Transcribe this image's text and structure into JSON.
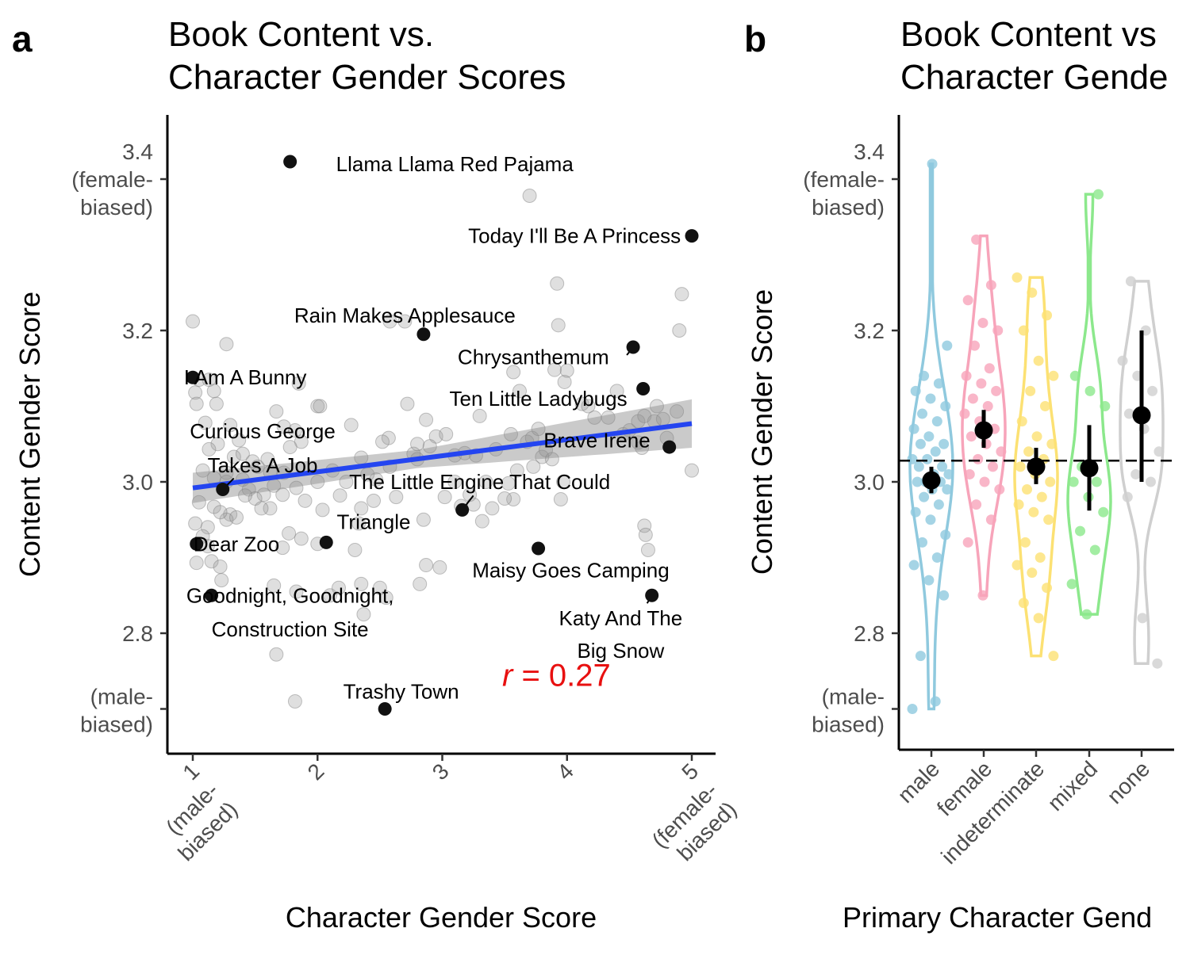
{
  "chart_data": [
    {
      "panel_label": "a",
      "type": "scatter",
      "title": "Book Content vs.\nCharacter Gender Scores",
      "xlabel": "Character Gender Score",
      "ylabel": "Content Gender Score",
      "xlim": [
        0.8,
        5.2
      ],
      "ylim": [
        2.64,
        3.48
      ],
      "grid": false,
      "x_ticks": [
        {
          "value": 1,
          "label": "1\n(male-\nbiased)"
        },
        {
          "value": 2,
          "label": "2"
        },
        {
          "value": 3,
          "label": "3"
        },
        {
          "value": 4,
          "label": "4"
        },
        {
          "value": 5,
          "label": "5\n(female-\nbiased)"
        }
      ],
      "y_ticks": [
        {
          "value": 3.4,
          "label": "3.4\n(female-\nbiased)"
        },
        {
          "value": 3.2,
          "label": "3.2"
        },
        {
          "value": 3.0,
          "label": "3.0"
        },
        {
          "value": 2.8,
          "label": "2.8"
        },
        {
          "value": 2.7,
          "label": "(male-\nbiased)"
        }
      ],
      "fit_line": {
        "x": [
          1,
          5
        ],
        "y": [
          2.992,
          3.077
        ],
        "ci_halfwidth_ends": [
          0.02,
          0.032
        ],
        "ci_halfwidth_mid": 0.012,
        "color": "#2445f0"
      },
      "annotation": {
        "text": "r = 0.27",
        "r_symbol": "r",
        "value_text": " = 0.27",
        "x": 3.75,
        "y": 2.745,
        "color": "#e81010"
      },
      "labeled_points": [
        {
          "x": 1.78,
          "y": 3.423,
          "label": "Llama Llama Red Pajama",
          "label_x": 3.1,
          "label_y": 3.42
        },
        {
          "x": 5.0,
          "y": 3.325,
          "label": "Today I'll Be A Princess",
          "label_x": 4.06,
          "label_y": 3.325
        },
        {
          "x": 2.85,
          "y": 3.195,
          "label": "Rain Makes Applesauce",
          "label_x": 2.7,
          "label_y": 3.22
        },
        {
          "x": 4.53,
          "y": 3.178,
          "label": "Chrysanthemum",
          "label_x": 3.73,
          "label_y": 3.165
        },
        {
          "x": 4.61,
          "y": 3.123,
          "label": "Ten Little Ladybugs",
          "label_x": 3.77,
          "label_y": 3.11
        },
        {
          "x": 1.0,
          "y": 3.138,
          "label": "I Am A Bunny",
          "label_x": 1.42,
          "label_y": 3.138
        },
        {
          "x": 4.82,
          "y": 3.046,
          "label": "Brave Irene",
          "label_x": 4.24,
          "label_y": 3.055
        },
        {
          "x": 1.24,
          "y": 2.99,
          "label": "Curious George\nTakes A Job",
          "label_x": 1.56,
          "label_y": 3.067,
          "label_y2": 3.022
        },
        {
          "x": 3.16,
          "y": 2.963,
          "label": "The Little Engine That Could",
          "label_x": 3.3,
          "label_y": 3.0
        },
        {
          "x": 2.07,
          "y": 2.92,
          "label": "Triangle",
          "label_x": 2.45,
          "label_y": 2.947
        },
        {
          "x": 1.03,
          "y": 2.918,
          "label": "Dear Zoo",
          "label_x": 1.35,
          "label_y": 2.918
        },
        {
          "x": 3.77,
          "y": 2.912,
          "label": "Maisy Goes Camping",
          "label_x": 4.03,
          "label_y": 2.883
        },
        {
          "x": 1.15,
          "y": 2.85,
          "label": "Goodnight, Goodnight,\nConstruction Site",
          "label_x": 1.78,
          "label_y": 2.85,
          "label_y2": 2.805
        },
        {
          "x": 4.68,
          "y": 2.85,
          "label": "Katy And The\nBig Snow",
          "label_x": 4.43,
          "label_y": 2.82,
          "label_y2": 2.777
        },
        {
          "x": 2.54,
          "y": 2.7,
          "label": "Trashy Town",
          "label_x": 2.67,
          "label_y": 2.723
        }
      ],
      "background_points": [
        [
          1.0,
          3.212
        ],
        [
          1.05,
          3.135
        ],
        [
          1.02,
          3.118
        ],
        [
          1.13,
          3.135
        ],
        [
          1.17,
          3.12
        ],
        [
          1.27,
          3.182
        ],
        [
          1.03,
          3.103
        ],
        [
          1.19,
          3.103
        ],
        [
          1.1,
          3.078
        ],
        [
          1.3,
          3.075
        ],
        [
          1.37,
          3.055
        ],
        [
          1.2,
          3.05
        ],
        [
          1.13,
          3.043
        ],
        [
          1.33,
          3.033
        ],
        [
          1.4,
          3.037
        ],
        [
          1.48,
          3.027
        ],
        [
          1.52,
          3.02
        ],
        [
          1.62,
          3.013
        ],
        [
          1.08,
          3.015
        ],
        [
          1.17,
          3.005
        ],
        [
          1.27,
          3.0
        ],
        [
          1.45,
          2.99
        ],
        [
          1.57,
          2.983
        ],
        [
          1.05,
          2.973
        ],
        [
          1.17,
          2.967
        ],
        [
          1.3,
          2.957
        ],
        [
          1.27,
          2.95
        ],
        [
          1.02,
          2.945
        ],
        [
          1.12,
          2.94
        ],
        [
          1.22,
          2.96
        ],
        [
          1.08,
          2.928
        ],
        [
          1.03,
          2.893
        ],
        [
          1.15,
          2.895
        ],
        [
          1.22,
          2.888
        ],
        [
          1.23,
          2.87
        ],
        [
          1.85,
          3.13
        ],
        [
          1.87,
          3.053
        ],
        [
          1.67,
          3.093
        ],
        [
          1.73,
          3.073
        ],
        [
          1.82,
          3.068
        ],
        [
          1.78,
          3.046
        ],
        [
          1.73,
          3.012
        ],
        [
          1.83,
          2.992
        ],
        [
          1.72,
          2.983
        ],
        [
          1.62,
          2.965
        ],
        [
          1.77,
          2.932
        ],
        [
          1.87,
          2.925
        ],
        [
          1.72,
          2.913
        ],
        [
          1.65,
          2.863
        ],
        [
          1.83,
          2.855
        ],
        [
          1.67,
          2.772
        ],
        [
          1.82,
          2.71
        ],
        [
          1.9,
          2.975
        ],
        [
          2.0,
          3.1
        ],
        [
          2.02,
          3.1
        ],
        [
          2.0,
          3.0
        ],
        [
          2.04,
          2.963
        ],
        [
          2.18,
          2.982
        ],
        [
          2.0,
          2.918
        ],
        [
          2.1,
          2.85
        ],
        [
          2.17,
          2.86
        ],
        [
          2.35,
          2.865
        ],
        [
          2.23,
          3.0
        ],
        [
          2.47,
          3.003
        ],
        [
          2.35,
          3.032
        ],
        [
          2.35,
          2.965
        ],
        [
          2.33,
          2.945
        ],
        [
          2.3,
          2.91
        ],
        [
          2.37,
          2.825
        ],
        [
          2.57,
          3.058
        ],
        [
          2.52,
          3.053
        ],
        [
          2.58,
          3.02
        ],
        [
          2.58,
          3.212
        ],
        [
          2.7,
          3.212
        ],
        [
          2.72,
          3.103
        ],
        [
          2.77,
          3.037
        ],
        [
          2.8,
          3.05
        ],
        [
          2.85,
          2.95
        ],
        [
          2.8,
          3.03
        ],
        [
          2.87,
          3.082
        ],
        [
          2.87,
          2.89
        ],
        [
          2.82,
          2.865
        ],
        [
          2.95,
          3.06
        ],
        [
          3.03,
          3.063
        ],
        [
          3.1,
          3.035
        ],
        [
          3.18,
          3.038
        ],
        [
          3.27,
          3.035
        ],
        [
          3.3,
          3.087
        ],
        [
          3.35,
          3.0
        ],
        [
          3.32,
          2.948
        ],
        [
          3.22,
          2.983
        ],
        [
          3.1,
          3.0
        ],
        [
          3.43,
          3.043
        ],
        [
          3.53,
          2.998
        ],
        [
          3.55,
          3.063
        ],
        [
          3.57,
          3.145
        ],
        [
          3.62,
          3.12
        ],
        [
          3.57,
          2.977
        ],
        [
          3.68,
          3.053
        ],
        [
          3.7,
          3.378
        ],
        [
          3.72,
          3.058
        ],
        [
          3.73,
          3.02
        ],
        [
          3.77,
          3.07
        ],
        [
          3.8,
          3.033
        ],
        [
          3.83,
          3.042
        ],
        [
          3.88,
          3.03
        ],
        [
          3.9,
          3.148
        ],
        [
          3.92,
          3.262
        ],
        [
          3.93,
          3.207
        ],
        [
          3.95,
          2.977
        ],
        [
          3.97,
          3.0
        ],
        [
          3.98,
          3.132
        ],
        [
          4.0,
          3.147
        ],
        [
          4.12,
          3.103
        ],
        [
          4.17,
          3.1
        ],
        [
          4.22,
          3.085
        ],
        [
          4.33,
          3.085
        ],
        [
          4.4,
          3.12
        ],
        [
          4.45,
          3.063
        ],
        [
          4.5,
          3.068
        ],
        [
          4.57,
          3.08
        ],
        [
          4.57,
          3.052
        ],
        [
          4.6,
          3.045
        ],
        [
          4.62,
          3.087
        ],
        [
          4.62,
          2.942
        ],
        [
          4.63,
          2.93
        ],
        [
          4.65,
          2.91
        ],
        [
          4.7,
          3.08
        ],
        [
          4.72,
          3.1
        ],
        [
          4.77,
          3.083
        ],
        [
          4.8,
          3.058
        ],
        [
          4.88,
          3.093
        ],
        [
          4.9,
          3.2
        ],
        [
          4.92,
          3.248
        ],
        [
          5.0,
          3.015
        ],
        [
          1.12,
          2.915
        ],
        [
          1.27,
          3.012
        ],
        [
          1.4,
          3.003
        ],
        [
          1.5,
          2.978
        ],
        [
          1.55,
          2.965
        ],
        [
          1.42,
          2.982
        ],
        [
          1.35,
          2.953
        ],
        [
          1.6,
          3.03
        ],
        [
          1.65,
          2.995
        ],
        [
          2.12,
          3.015
        ],
        [
          2.27,
          3.075
        ],
        [
          2.4,
          3.01
        ],
        [
          2.45,
          2.975
        ],
        [
          2.63,
          2.98
        ],
        [
          2.5,
          2.86
        ],
        [
          2.55,
          2.847
        ],
        [
          2.98,
          2.887
        ],
        [
          2.9,
          3.047
        ],
        [
          3.02,
          2.98
        ],
        [
          3.15,
          2.968
        ],
        [
          3.25,
          2.97
        ],
        [
          3.4,
          2.965
        ],
        [
          3.5,
          2.978
        ],
        [
          3.6,
          3.015
        ]
      ]
    },
    {
      "panel_label": "b",
      "type": "violin",
      "title": "Book Content vs\nCharacter Gende",
      "xlabel": "Primary Character Gend",
      "ylabel": "Content Gender Score",
      "ylim": [
        2.64,
        3.48
      ],
      "grid": false,
      "reference_line_y": 3.028,
      "y_ticks": [
        {
          "value": 3.4,
          "label": "3.4\n(female-\nbiased)"
        },
        {
          "value": 3.2,
          "label": "3.2"
        },
        {
          "value": 3.0,
          "label": "3.0"
        },
        {
          "value": 2.8,
          "label": "2.8"
        },
        {
          "value": 2.7,
          "label": "(male-\nbiased)"
        }
      ],
      "categories": [
        "male",
        "female",
        "indeterminate",
        "mixed",
        "none"
      ],
      "series": [
        {
          "name": "male",
          "color": "#8fc9de",
          "mean": 3.002,
          "ci": [
            2.985,
            3.02
          ],
          "range": [
            2.7,
            3.42
          ],
          "points": [
            2.7,
            2.71,
            2.77,
            2.85,
            2.87,
            2.89,
            2.9,
            2.92,
            2.93,
            2.95,
            2.96,
            2.97,
            2.98,
            2.99,
            2.99,
            3.0,
            3.0,
            3.0,
            3.01,
            3.01,
            3.02,
            3.02,
            3.03,
            3.03,
            3.04,
            3.05,
            3.05,
            3.06,
            3.07,
            3.08,
            3.09,
            3.1,
            3.11,
            3.12,
            3.13,
            3.14,
            3.18,
            3.42
          ]
        },
        {
          "name": "female",
          "color": "#f7a4ba",
          "mean": 3.068,
          "ci": [
            3.045,
            3.095
          ],
          "range": [
            2.85,
            3.325
          ],
          "points": [
            2.85,
            2.92,
            2.95,
            2.97,
            2.99,
            3.0,
            3.01,
            3.02,
            3.03,
            3.04,
            3.05,
            3.06,
            3.07,
            3.08,
            3.09,
            3.1,
            3.11,
            3.12,
            3.13,
            3.14,
            3.15,
            3.18,
            3.2,
            3.21,
            3.24,
            3.26,
            3.32
          ]
        },
        {
          "name": "indeterminate",
          "color": "#fce173",
          "mean": 3.02,
          "ci": [
            2.997,
            3.045
          ],
          "range": [
            2.77,
            3.27
          ],
          "points": [
            2.77,
            2.82,
            2.84,
            2.86,
            2.88,
            2.89,
            2.9,
            2.92,
            2.95,
            2.96,
            2.97,
            2.98,
            2.99,
            3.0,
            3.01,
            3.02,
            3.03,
            3.04,
            3.05,
            3.06,
            3.08,
            3.1,
            3.12,
            3.14,
            3.16,
            3.2,
            3.22,
            3.25,
            3.27
          ]
        },
        {
          "name": "mixed",
          "color": "#8ce88c",
          "mean": 3.018,
          "ci": [
            2.962,
            3.075
          ],
          "range": [
            2.825,
            3.38
          ],
          "points": [
            2.825,
            2.865,
            2.91,
            2.935,
            2.96,
            2.98,
            3.0,
            3.0,
            3.02,
            3.1,
            3.12,
            3.14,
            3.38
          ]
        },
        {
          "name": "none",
          "color": "#cfcfcf",
          "mean": 3.088,
          "ci": [
            3.0,
            3.2
          ],
          "range": [
            2.76,
            3.265
          ],
          "points": [
            2.76,
            2.82,
            2.98,
            3.0,
            3.01,
            3.04,
            3.07,
            3.09,
            3.12,
            3.14,
            3.16,
            3.2,
            3.265
          ]
        }
      ]
    }
  ]
}
